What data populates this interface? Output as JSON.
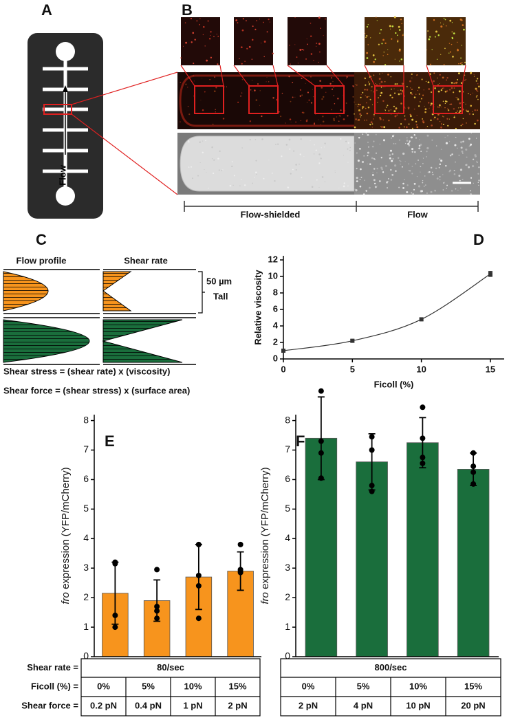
{
  "panel_labels": [
    "A",
    "B",
    "C",
    "D",
    "E",
    "F"
  ],
  "panel_a": {
    "flow_label": "Flow"
  },
  "panel_b": {
    "regions": [
      "Flow-shielded",
      "Flow"
    ]
  },
  "panel_c": {
    "columns": [
      "Flow profile",
      "Shear rate"
    ],
    "height_label": "50 µm",
    "height_sub": "Tall",
    "equations": [
      "Shear stress = (shear rate) x (viscosity)",
      "Shear force = (shear stress) x (surface area)"
    ]
  },
  "table_rows": [
    "Shear rate =",
    "Ficoll (%) =",
    "Shear force ="
  ],
  "chart_data": [
    {
      "type": "line",
      "xlabel": "Ficoll (%)",
      "ylabel": "Relative viscosity",
      "x": [
        0,
        5,
        10,
        15
      ],
      "values": [
        1,
        2.2,
        4.8,
        10.3
      ],
      "errors": [
        0.1,
        0.15,
        0.15,
        0.3
      ],
      "xlim": [
        0,
        16
      ],
      "ylim": [
        0,
        12.5
      ],
      "xticks": [
        0,
        5,
        10,
        15
      ],
      "yticks": [
        0,
        2,
        4,
        6,
        8,
        10,
        12
      ],
      "color": "#333333"
    },
    {
      "type": "bar",
      "ylabel_italic": "fro",
      "ylabel": " expression (YFP/mCherry)",
      "shear_rate": "80/sec",
      "categories": [
        "0%",
        "5%",
        "10%",
        "15%"
      ],
      "shear_force": [
        "0.2 pN",
        "0.4 pN",
        "1 pN",
        "2 pN"
      ],
      "values": [
        2.15,
        1.9,
        2.7,
        2.9
      ],
      "errors": [
        1.05,
        0.7,
        1.1,
        0.65
      ],
      "points": [
        [
          3.2,
          3.15,
          1.4,
          1.0
        ],
        [
          2.95,
          1.7,
          1.55,
          1.3
        ],
        [
          3.8,
          2.75,
          2.4,
          1.3
        ],
        [
          3.8,
          2.95,
          2.9,
          2.85
        ]
      ],
      "ylim": [
        0,
        8.2
      ],
      "yticks": [
        0,
        1,
        2,
        3,
        4,
        5,
        6,
        7,
        8
      ],
      "color": "#f7941d"
    },
    {
      "type": "bar",
      "ylabel_italic": "fro",
      "ylabel": " expression (YFP/mCherry)",
      "shear_rate": "800/sec",
      "categories": [
        "0%",
        "5%",
        "10%",
        "15%"
      ],
      "shear_force": [
        "2 pN",
        "4 pN",
        "10 pN",
        "20 pN"
      ],
      "values": [
        7.4,
        6.6,
        7.25,
        6.35
      ],
      "errors": [
        1.4,
        0.95,
        0.85,
        0.55
      ],
      "points": [
        [
          9.0,
          7.3,
          6.9,
          6.05
        ],
        [
          7.45,
          7.0,
          5.8,
          5.6
        ],
        [
          8.45,
          7.4,
          6.75,
          6.55
        ],
        [
          6.9,
          6.45,
          6.25,
          5.85
        ]
      ],
      "ylim": [
        0,
        8.2
      ],
      "yticks": [
        0,
        1,
        2,
        3,
        4,
        5,
        6,
        7,
        8
      ],
      "color": "#1a6e3c"
    }
  ]
}
